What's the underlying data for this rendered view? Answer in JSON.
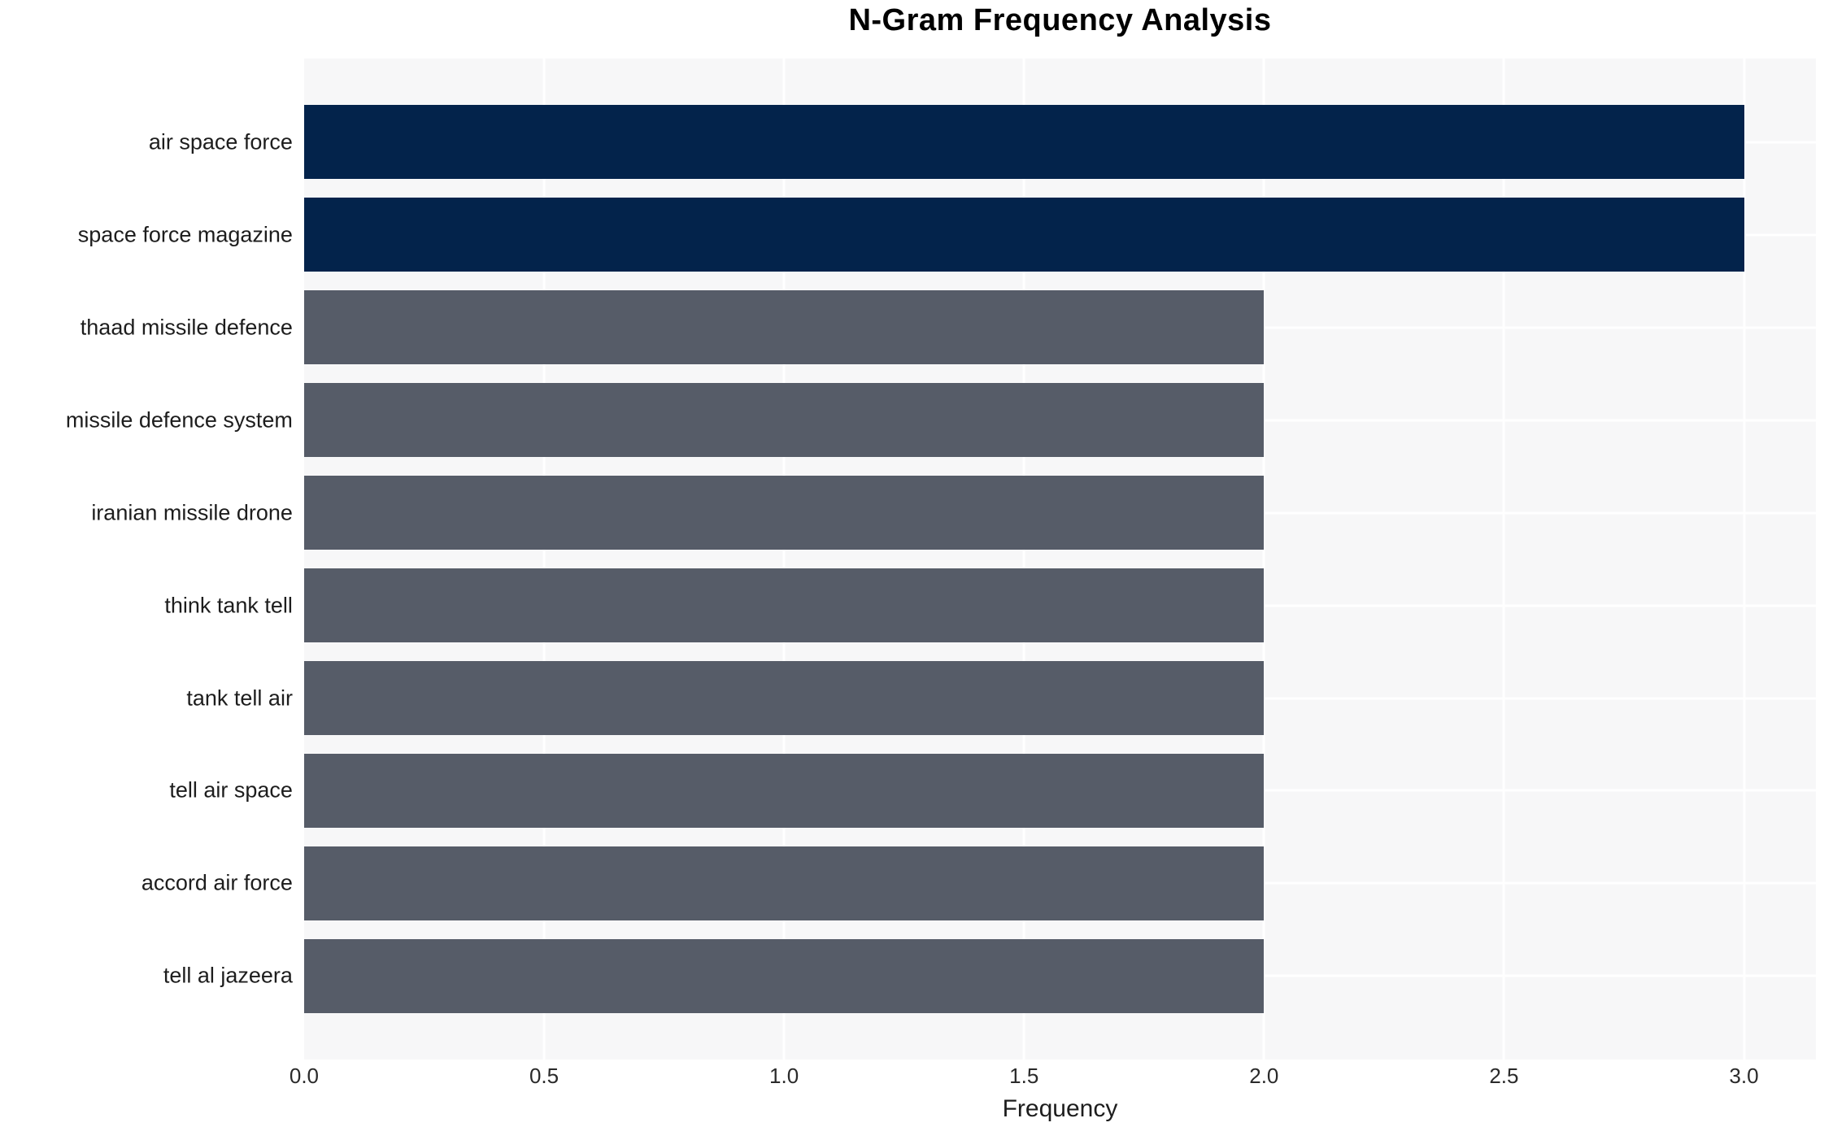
{
  "chart_data": {
    "type": "bar",
    "orientation": "horizontal",
    "title": "N-Gram Frequency Analysis",
    "xlabel": "Frequency",
    "ylabel": "",
    "categories": [
      "air space force",
      "space force magazine",
      "thaad missile defence",
      "missile defence system",
      "iranian missile drone",
      "think tank tell",
      "tank tell air",
      "tell air space",
      "accord air force",
      "tell al jazeera"
    ],
    "values": [
      3,
      3,
      2,
      2,
      2,
      2,
      2,
      2,
      2,
      2
    ],
    "bar_color_keys": [
      "top",
      "top",
      "default",
      "default",
      "default",
      "default",
      "default",
      "default",
      "default",
      "default"
    ],
    "xlim": [
      0,
      3.15
    ],
    "xticks": [
      {
        "value": 0.0,
        "label": "0.0"
      },
      {
        "value": 0.5,
        "label": "0.5"
      },
      {
        "value": 1.0,
        "label": "1.0"
      },
      {
        "value": 1.5,
        "label": "1.5"
      },
      {
        "value": 2.0,
        "label": "2.0"
      },
      {
        "value": 2.5,
        "label": "2.5"
      },
      {
        "value": 3.0,
        "label": "3.0"
      }
    ],
    "grid": true,
    "legend": false,
    "colors": {
      "top": "#03234b",
      "default": "#565c68",
      "plot_background": "#f7f7f8",
      "gridline": "#ffffff"
    },
    "layout": {
      "bar_thickness_units": 0.8,
      "row_pitch_units": 1.0,
      "top_margin_units": 0.5,
      "total_units": 10.8
    }
  }
}
